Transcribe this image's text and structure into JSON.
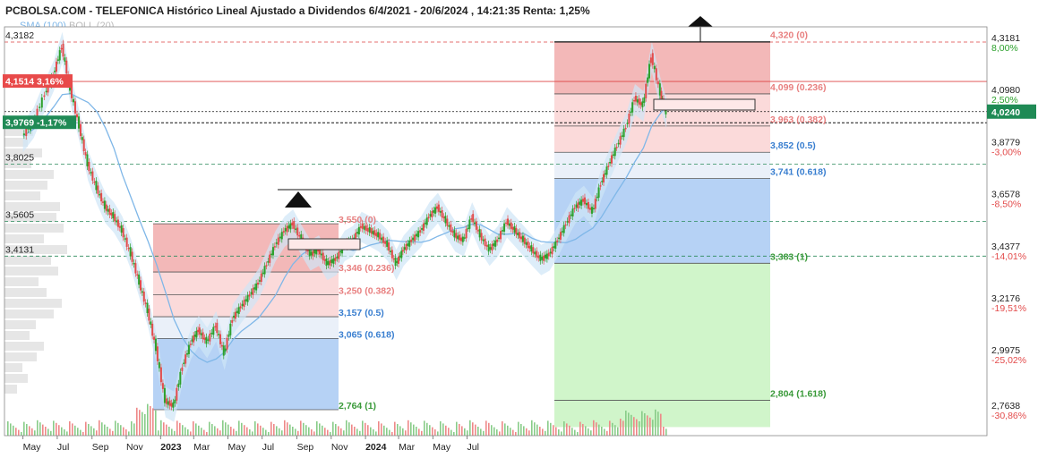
{
  "title": "PCBOLSA.COM - TELEFONICA Histórico Lineal Ajustado a Dividendos 6/4/2021 - 20/6/2024 , 14:21:35 Renta: 1,25%",
  "legend": {
    "sma": "SMA (100)",
    "boll": "BOLL (20)"
  },
  "colors": {
    "up": "#2ca02c",
    "down": "#e34b4b",
    "sma": "#7fb7e8",
    "boll_fill": "#cfe5f6",
    "fib_red": "#f0a6a6",
    "fib_blue": "#9ec3f2",
    "fib_green": "#c4f3bd"
  },
  "chart_data": {
    "type": "line",
    "title": "TELEFONICA Histórico Lineal Ajustado a Dividendos 6/4/2021 - 20/6/2024",
    "ylim": [
      2.72,
      4.34
    ],
    "x_ticks": [
      "May",
      "Jul",
      "Sep",
      "Nov",
      "2023",
      "Mar",
      "May",
      "Jul",
      "Sep",
      "Nov",
      "2024",
      "Mar",
      "May",
      "Jul"
    ],
    "y_right_ticks": [
      "4,3181",
      "4,0980",
      "3,8779",
      "3,6578",
      "3,4377",
      "3,2176",
      "2,9975",
      "2,7638"
    ],
    "pct_ticks": [
      "8,00%",
      "2,50%",
      "-3,00%",
      "-8,50%",
      "-14,01%",
      "-19,51%",
      "-25,02%",
      "-30,86%"
    ],
    "current_price": "4,0240",
    "left_levels": [
      "4,3182",
      "3,8025",
      "3,5605",
      "3,4131"
    ],
    "markers": [
      {
        "value": "4,1514",
        "change": "3,16%"
      },
      {
        "value": "3,9769",
        "change": "-1,17%"
      }
    ],
    "fib_2022": [
      {
        "label": "3,550 (0)"
      },
      {
        "label": "3,346 (0.236)"
      },
      {
        "label": "3,250 (0.382)"
      },
      {
        "label": "3,157 (0.5)"
      },
      {
        "label": "3,065 (0.618)"
      },
      {
        "label": "2,764 (1)"
      }
    ],
    "fib_2024": [
      {
        "label": "4,320 (0)"
      },
      {
        "label": "4,099 (0.236)"
      },
      {
        "label": "3,963 (0.382)"
      },
      {
        "label": "3,852 (0.5)"
      },
      {
        "label": "3,741 (0.618)"
      },
      {
        "label": "3,383 (1)"
      },
      {
        "label": "2,804 (1.618)"
      }
    ],
    "series": [
      {
        "name": "TELEFONICA",
        "x": [
          "2021-05-01",
          "2021-05-20",
          "2021-06-10",
          "2021-06-25",
          "2021-07-10",
          "2021-07-25",
          "2021-08-10",
          "2021-08-25",
          "2021-09-10",
          "2021-09-25",
          "2021-10-10",
          "2021-10-25",
          "2021-11-10",
          "2021-11-25",
          "2021-12-10",
          "2021-12-25",
          "2022-01-10",
          "2022-01-25",
          "2022-02-10",
          "2022-02-25",
          "2022-03-10",
          "2022-03-25",
          "2022-04-10",
          "2022-04-25",
          "2022-05-10",
          "2022-05-25",
          "2022-06-10",
          "2022-06-25",
          "2022-07-10",
          "2022-07-25",
          "2022-08-10",
          "2022-08-25",
          "2022-09-10",
          "2022-09-25",
          "2022-10-10",
          "2022-10-25",
          "2022-11-10",
          "2022-11-25",
          "2022-12-10",
          "2022-12-25",
          "2023-01-10",
          "2023-01-25",
          "2023-02-10",
          "2023-02-25",
          "2023-03-10",
          "2023-03-25",
          "2023-04-10",
          "2023-04-25",
          "2023-05-10",
          "2023-05-25",
          "2023-06-10",
          "2023-06-25",
          "2023-07-10",
          "2023-07-25",
          "2023-08-10",
          "2023-08-25",
          "2023-09-10",
          "2023-09-25",
          "2023-10-10",
          "2023-10-25",
          "2023-11-10",
          "2023-11-25",
          "2023-12-10",
          "2023-12-25",
          "2024-01-10",
          "2024-01-25",
          "2024-02-10",
          "2024-02-25",
          "2024-03-10",
          "2024-03-25",
          "2024-04-10",
          "2024-04-25",
          "2024-05-10",
          "2024-05-25",
          "2024-06-10",
          "2024-06-20"
        ],
        "y": [
          3.92,
          3.98,
          4.1,
          4.18,
          4.3,
          4.12,
          3.96,
          3.8,
          3.7,
          3.62,
          3.58,
          3.52,
          3.42,
          3.3,
          3.18,
          3.02,
          2.8,
          2.78,
          2.95,
          3.05,
          3.1,
          3.05,
          3.12,
          3.0,
          3.15,
          3.2,
          3.25,
          3.3,
          3.38,
          3.46,
          3.52,
          3.55,
          3.48,
          3.42,
          3.44,
          3.38,
          3.4,
          3.46,
          3.48,
          3.54,
          3.52,
          3.5,
          3.46,
          3.38,
          3.44,
          3.48,
          3.52,
          3.58,
          3.62,
          3.56,
          3.5,
          3.48,
          3.58,
          3.5,
          3.44,
          3.48,
          3.56,
          3.52,
          3.48,
          3.44,
          3.4,
          3.42,
          3.48,
          3.55,
          3.62,
          3.65,
          3.6,
          3.72,
          3.8,
          3.88,
          3.96,
          4.08,
          4.05,
          4.26,
          4.1,
          4.02
        ]
      }
    ]
  }
}
